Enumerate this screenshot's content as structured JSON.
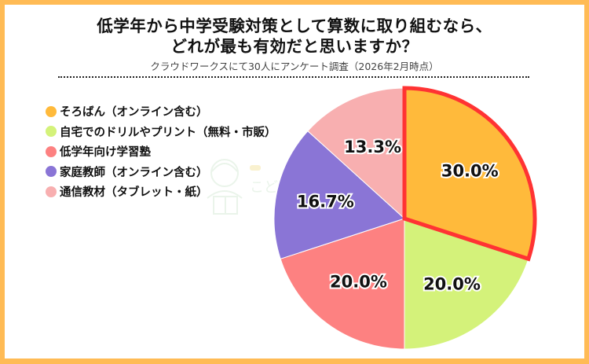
{
  "header": {
    "title_line1": "低学年から中学受験対策として算数に取り組むなら、",
    "title_line2": "どれが最も有効だと思いますか？",
    "subtitle": "クラウドワークスにて30人にアンケート調査（2026年2月時点）"
  },
  "colors": {
    "frame": "#ffbb55",
    "highlight_stroke": "#ff3333"
  },
  "legend": [
    {
      "label": "そろばん（オンライン含む）",
      "color": "#ffba3b"
    },
    {
      "label": "自宅でのドリルやプリント（無料・市販）",
      "color": "#d4f27a"
    },
    {
      "label": "低学年向け学習塾",
      "color": "#fd8181"
    },
    {
      "label": "家庭教師（オンライン含む）",
      "color": "#8a75d6"
    },
    {
      "label": "通信教材（タブレット・紙）",
      "color": "#f8afb0"
    }
  ],
  "pie_labels": [
    "30.0%",
    "20.0%",
    "20.0%",
    "16.7%",
    "13.3%"
  ],
  "watermark": {
    "text": "こど"
  },
  "chart_data": {
    "type": "pie",
    "title": "低学年から中学受験対策として算数に取り組むなら、どれが最も有効だと思いますか？",
    "subtitle": "クラウドワークスにて30人にアンケート調査（2026年2月時点）",
    "categories": [
      "そろばん（オンライン含む）",
      "自宅でのドリルやプリント（無料・市販）",
      "低学年向け学習塾",
      "家庭教師（オンライン含む）",
      "通信教材（タブレット・紙）"
    ],
    "values": [
      30.0,
      20.0,
      20.0,
      16.7,
      13.3
    ],
    "colors": [
      "#ffba3b",
      "#d4f27a",
      "#fd8181",
      "#8a75d6",
      "#f8afb0"
    ],
    "unit": "%",
    "start_angle": "12 o'clock, clockwise",
    "highlighted": "そろばん（オンライン含む）",
    "legend_position": "left"
  }
}
